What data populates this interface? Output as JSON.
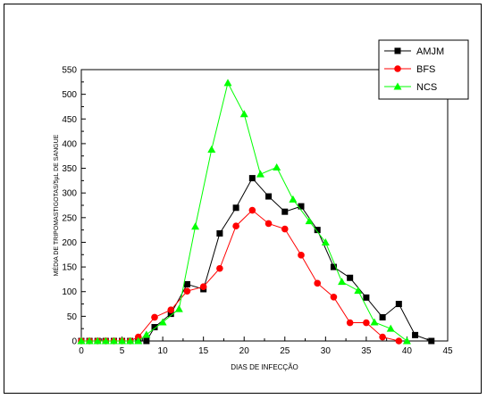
{
  "chart_data": {
    "type": "line",
    "title": "",
    "xlabel": "DIAS DE INFECÇÃO",
    "ylabel": "MÉDIA DE TRIPOMASTIGOTAS/5µL DE SANGUE",
    "xlim": [
      0,
      45
    ],
    "ylim": [
      0,
      550
    ],
    "xticks": [
      0,
      5,
      10,
      15,
      20,
      25,
      30,
      35,
      40,
      45
    ],
    "yticks": [
      0,
      50,
      100,
      150,
      200,
      250,
      300,
      350,
      400,
      450,
      500,
      550
    ],
    "grid": false,
    "legend_position": "top-right",
    "series": [
      {
        "name": "AMJM",
        "color": "#000000",
        "marker": "square",
        "x": [
          0,
          1,
          2,
          3,
          4,
          5,
          6,
          7,
          8,
          9,
          11,
          13,
          15,
          17,
          19,
          21,
          23,
          25,
          27,
          29,
          31,
          33,
          35,
          37,
          39,
          41,
          43
        ],
        "y": [
          0,
          0,
          0,
          0,
          0,
          0,
          0,
          0,
          0,
          28,
          55,
          115,
          105,
          218,
          270,
          330,
          293,
          262,
          273,
          225,
          150,
          128,
          88,
          48,
          75,
          12,
          0
        ]
      },
      {
        "name": "BFS",
        "color": "#ff0000",
        "marker": "circle",
        "x": [
          0,
          1,
          2,
          3,
          4,
          5,
          6,
          7,
          9,
          11,
          13,
          15,
          17,
          19,
          21,
          23,
          25,
          27,
          29,
          31,
          33,
          35,
          37,
          39
        ],
        "y": [
          0,
          0,
          0,
          0,
          0,
          0,
          0,
          8,
          48,
          63,
          101,
          110,
          147,
          233,
          265,
          238,
          227,
          174,
          117,
          89,
          37,
          37,
          8,
          0
        ]
      },
      {
        "name": "NCS",
        "color": "#00ff00",
        "marker": "triangle",
        "x": [
          0,
          1,
          2,
          3,
          4,
          5,
          6,
          7,
          8,
          10,
          12,
          14,
          16,
          18,
          20,
          22,
          24,
          26,
          28,
          30,
          32,
          34,
          36,
          38,
          40
        ],
        "y": [
          0,
          0,
          0,
          0,
          0,
          0,
          0,
          0,
          13,
          38,
          65,
          232,
          388,
          523,
          460,
          338,
          352,
          287,
          243,
          200,
          120,
          102,
          38,
          25,
          0
        ]
      }
    ]
  }
}
